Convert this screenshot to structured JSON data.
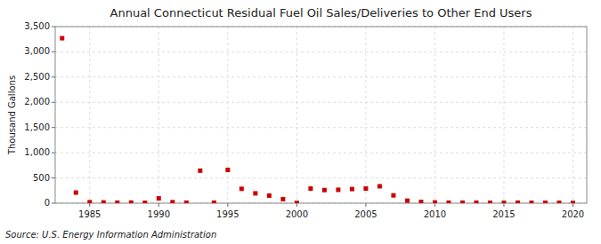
{
  "chart_data": {
    "type": "scatter",
    "title": "Annual Connecticut Residual Fuel Oil Sales/Deliveries to Other End Users",
    "y_label": "Thousand Gallons",
    "annotations": [
      "Source: U.S. Energy Information Administration"
    ],
    "x": [
      1983,
      1984,
      1985,
      1986,
      1987,
      1988,
      1989,
      1990,
      1991,
      1992,
      1993,
      1994,
      1995,
      1996,
      1997,
      1998,
      1999,
      2000,
      2001,
      2002,
      2003,
      2004,
      2005,
      2006,
      2007,
      2008,
      2009,
      2010,
      2011,
      2012,
      2013,
      2014,
      2015,
      2016,
      2017,
      2018,
      2019,
      2020
    ],
    "values": [
      3270,
      210,
      20,
      15,
      10,
      12,
      8,
      95,
      20,
      10,
      645,
      10,
      660,
      285,
      195,
      150,
      80,
      5,
      290,
      260,
      265,
      280,
      290,
      335,
      155,
      50,
      25,
      15,
      10,
      10,
      10,
      8,
      8,
      10,
      8,
      8,
      8,
      5
    ],
    "color": "#cc0000",
    "marker": "square",
    "xlim": [
      1982.5,
      2021
    ],
    "xticks": [
      1985,
      1990,
      1995,
      2000,
      2005,
      2010,
      2015,
      2020
    ],
    "ylim": [
      0,
      3500
    ],
    "yticks": [
      0,
      500,
      {
        "value": 1000,
        "label": "1,000"
      },
      {
        "value": 1500,
        "label": "1,500"
      },
      {
        "value": 2000,
        "label": "2,000"
      },
      {
        "value": 2500,
        "label": "2,500"
      },
      {
        "value": 3000,
        "label": "3,000"
      },
      {
        "value": 3500,
        "label": "3,500"
      }
    ],
    "grid": true
  }
}
